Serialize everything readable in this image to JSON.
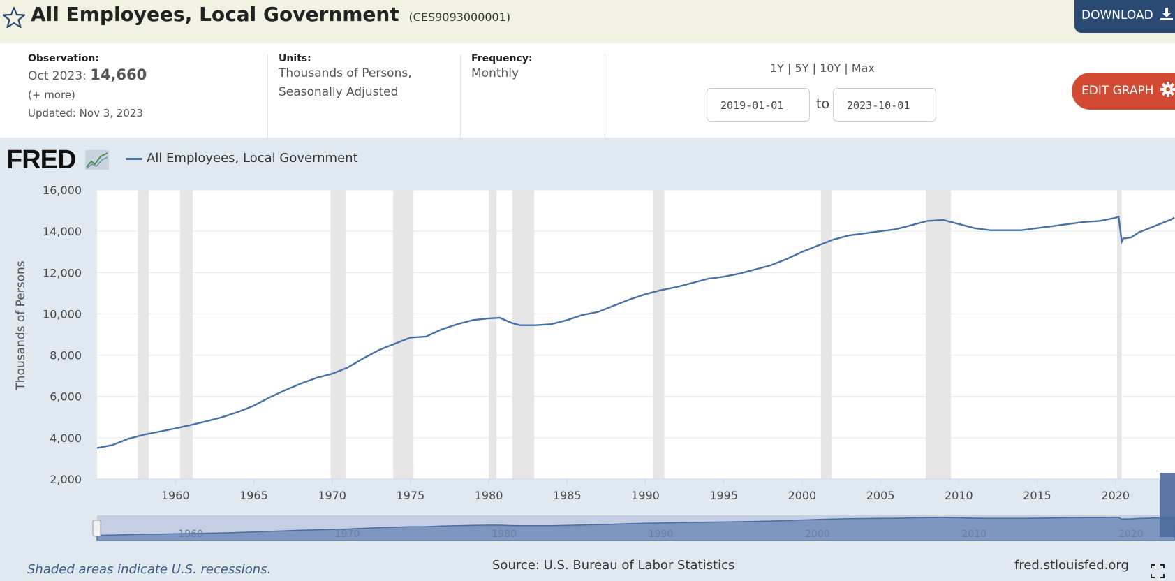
{
  "header": {
    "title": "All Employees, Local Government",
    "series_id": "(CES9093000001)",
    "download_label": "DOWNLOAD"
  },
  "info": {
    "observation_label": "Observation:",
    "observation_date": "Oct 2023:",
    "observation_value": "14,660",
    "more_link": "(+ more)",
    "updated": "Updated: Nov 3, 2023",
    "units_label": "Units:",
    "units_line1": "Thousands of Persons,",
    "units_line2": "Seasonally Adjusted",
    "frequency_label": "Frequency:",
    "frequency_value": "Monthly"
  },
  "range": {
    "r1": "1Y",
    "r5": "5Y",
    "r10": "10Y",
    "max": "Max",
    "sep": "|",
    "start": "2019-01-01",
    "end": "2023-10-01",
    "to": "to"
  },
  "edit_label": "EDIT GRAPH",
  "logo_text": "FRED",
  "footer": {
    "recession_note": "Shaded areas indicate U.S. recessions.",
    "source": "Source: U.S. Bureau of Labor Statistics",
    "site": "fred.stlouisfed.org"
  },
  "colors": {
    "line": "#4572a7",
    "recession": "#e6e6e6",
    "edit_button": "#d24a33",
    "download_button": "#2b4a73"
  },
  "chart_data": {
    "type": "line",
    "title": "",
    "xlabel": "",
    "ylabel": "Thousands of Persons",
    "ylim": [
      2000,
      16000
    ],
    "xlim": [
      1955,
      2023.8
    ],
    "yticks": [
      2000,
      4000,
      6000,
      8000,
      10000,
      12000,
      14000,
      16000
    ],
    "ytick_labels": [
      "2,000",
      "4,000",
      "6,000",
      "8,000",
      "10,000",
      "12,000",
      "14,000",
      "16,000"
    ],
    "xticks": [
      1960,
      1965,
      1970,
      1975,
      1980,
      1985,
      1990,
      1995,
      2000,
      2005,
      2010,
      2015,
      2020
    ],
    "xtick_labels": [
      "1960",
      "1965",
      "1970",
      "1975",
      "1980",
      "1985",
      "1990",
      "1995",
      "2000",
      "2005",
      "2010",
      "2015",
      "2020"
    ],
    "navigator_labels": [
      "1960",
      "1970",
      "1980",
      "1990",
      "2000",
      "2010",
      "2020"
    ],
    "grid": true,
    "legend": "top-left",
    "recessions": [
      [
        1957.6,
        1958.3
      ],
      [
        1960.3,
        1961.1
      ],
      [
        1969.9,
        1970.9
      ],
      [
        1973.9,
        1975.2
      ],
      [
        1980.0,
        1980.5
      ],
      [
        1981.5,
        1982.9
      ],
      [
        1990.5,
        1991.2
      ],
      [
        2001.2,
        2001.9
      ],
      [
        2007.9,
        2009.5
      ],
      [
        2020.1,
        2020.4
      ]
    ],
    "series": [
      {
        "name": "All Employees, Local Government",
        "x": [
          1955.0,
          1956.0,
          1957.0,
          1958.0,
          1959.0,
          1960.0,
          1961.0,
          1962.0,
          1963.0,
          1964.0,
          1965.0,
          1966.0,
          1967.0,
          1968.0,
          1969.0,
          1970.0,
          1971.0,
          1972.0,
          1973.0,
          1974.0,
          1975.0,
          1976.0,
          1977.0,
          1978.0,
          1979.0,
          1980.0,
          1980.7,
          1981.5,
          1982.0,
          1983.0,
          1984.0,
          1985.0,
          1986.0,
          1987.0,
          1988.0,
          1989.0,
          1990.0,
          1991.0,
          1992.0,
          1993.0,
          1994.0,
          1995.0,
          1996.0,
          1997.0,
          1998.0,
          1999.0,
          2000.0,
          2001.0,
          2002.0,
          2003.0,
          2004.0,
          2005.0,
          2006.0,
          2007.0,
          2008.0,
          2009.0,
          2010.0,
          2011.0,
          2012.0,
          2013.0,
          2014.0,
          2015.0,
          2016.0,
          2017.0,
          2018.0,
          2019.0,
          2020.0,
          2020.2,
          2020.4,
          2020.5,
          2021.0,
          2021.5,
          2022.0,
          2022.5,
          2023.0,
          2023.5,
          2023.75
        ],
        "values": [
          3500,
          3650,
          3950,
          4150,
          4300,
          4450,
          4620,
          4800,
          5000,
          5250,
          5550,
          5950,
          6300,
          6620,
          6900,
          7100,
          7400,
          7850,
          8250,
          8550,
          8850,
          8900,
          9250,
          9500,
          9700,
          9780,
          9810,
          9550,
          9450,
          9450,
          9500,
          9700,
          9950,
          10100,
          10400,
          10700,
          10950,
          11150,
          11300,
          11500,
          11700,
          11800,
          11950,
          12150,
          12350,
          12650,
          13000,
          13300,
          13600,
          13800,
          13900,
          14000,
          14100,
          14300,
          14500,
          14550,
          14350,
          14150,
          14050,
          14050,
          14050,
          14150,
          14250,
          14350,
          14450,
          14500,
          14650,
          14700,
          13500,
          13650,
          13700,
          13950,
          14100,
          14250,
          14400,
          14550,
          14660
        ]
      }
    ]
  }
}
